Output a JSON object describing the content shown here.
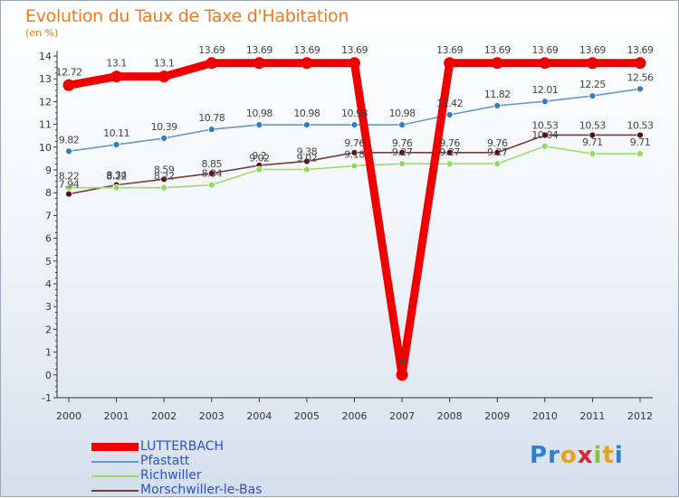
{
  "title": "Evolution du Taux de Taxe d'Habitation",
  "subtitle": "(en %)",
  "logo": {
    "text": "Proxiti",
    "letters": [
      "P",
      "r",
      "o",
      "x",
      "i",
      "t",
      "i"
    ],
    "colors": [
      "#2f7fcf",
      "#2f7fcf",
      "#e9a11b",
      "#d8262c",
      "#8ac13c",
      "#e9a11b",
      "#2f7fcf"
    ]
  },
  "chart_data": {
    "type": "line",
    "title": "Evolution du Taux de Taxe d'Habitation",
    "ylabel": "(en %)",
    "xlabel": "",
    "grid": false,
    "legend_position": "bottom-left",
    "ylim": [
      -1,
      14
    ],
    "yticks": [
      -1,
      0,
      1,
      2,
      3,
      4,
      5,
      6,
      7,
      8,
      9,
      10,
      11,
      12,
      13,
      14
    ],
    "x": [
      "2000",
      "2001",
      "2002",
      "2003",
      "2004",
      "2005",
      "2006",
      "2007",
      "2008",
      "2009",
      "2010",
      "2011",
      "2012"
    ],
    "series": [
      {
        "name": "LUTTERBACH",
        "color": "#ee0000",
        "values": [
          12.72,
          13.1,
          13.1,
          13.69,
          13.69,
          13.69,
          13.69,
          0,
          13.69,
          13.69,
          13.69,
          13.69,
          13.69
        ],
        "labels": [
          "12.72",
          "13.1",
          "13.1",
          "13.69",
          "13.69",
          "13.69",
          "13.69",
          "0",
          "13.69",
          "13.69",
          "13.69",
          "13.69",
          "13.69"
        ]
      },
      {
        "name": "Pfastatt",
        "color": "#6699cc",
        "marker": "#2f7fc8",
        "values": [
          9.82,
          10.11,
          10.39,
          10.78,
          10.98,
          10.98,
          10.98,
          10.98,
          11.42,
          11.82,
          12.01,
          12.25,
          12.56
        ],
        "labels": [
          "9.82",
          "10.11",
          "10.39",
          "10.78",
          "10.98",
          "10.98",
          "10.98",
          "10.98",
          "11.42",
          "11.82",
          "12.01",
          "12.25",
          "12.56"
        ]
      },
      {
        "name": "Richwiller",
        "color": "#99dd66",
        "marker": "#8fdc5a",
        "values": [
          8.22,
          8.22,
          8.22,
          8.34,
          9.02,
          9.02,
          9.18,
          9.27,
          9.27,
          9.27,
          10.04,
          9.71,
          9.71
        ],
        "labels": [
          "8.22",
          "8.22",
          "8.22",
          "8.34",
          "9.02",
          "9.02",
          "9.18",
          "9.27",
          "9.27",
          "9.27",
          "10.04",
          "9.71",
          "9.71"
        ]
      },
      {
        "name": "Morschwiller-le-Bas",
        "color": "#7a3a3a",
        "marker": "#5a0f12",
        "values": [
          7.94,
          8.34,
          8.59,
          8.85,
          9.2,
          9.38,
          9.76,
          9.76,
          9.76,
          9.76,
          10.53,
          10.53,
          10.53
        ],
        "labels": [
          "7.94",
          "8.34",
          "8.59",
          "8.85",
          "9.2",
          "9.38",
          "9.76",
          "9.76",
          "9.76",
          "9.76",
          "10.53",
          "10.53",
          "10.53"
        ]
      }
    ]
  }
}
